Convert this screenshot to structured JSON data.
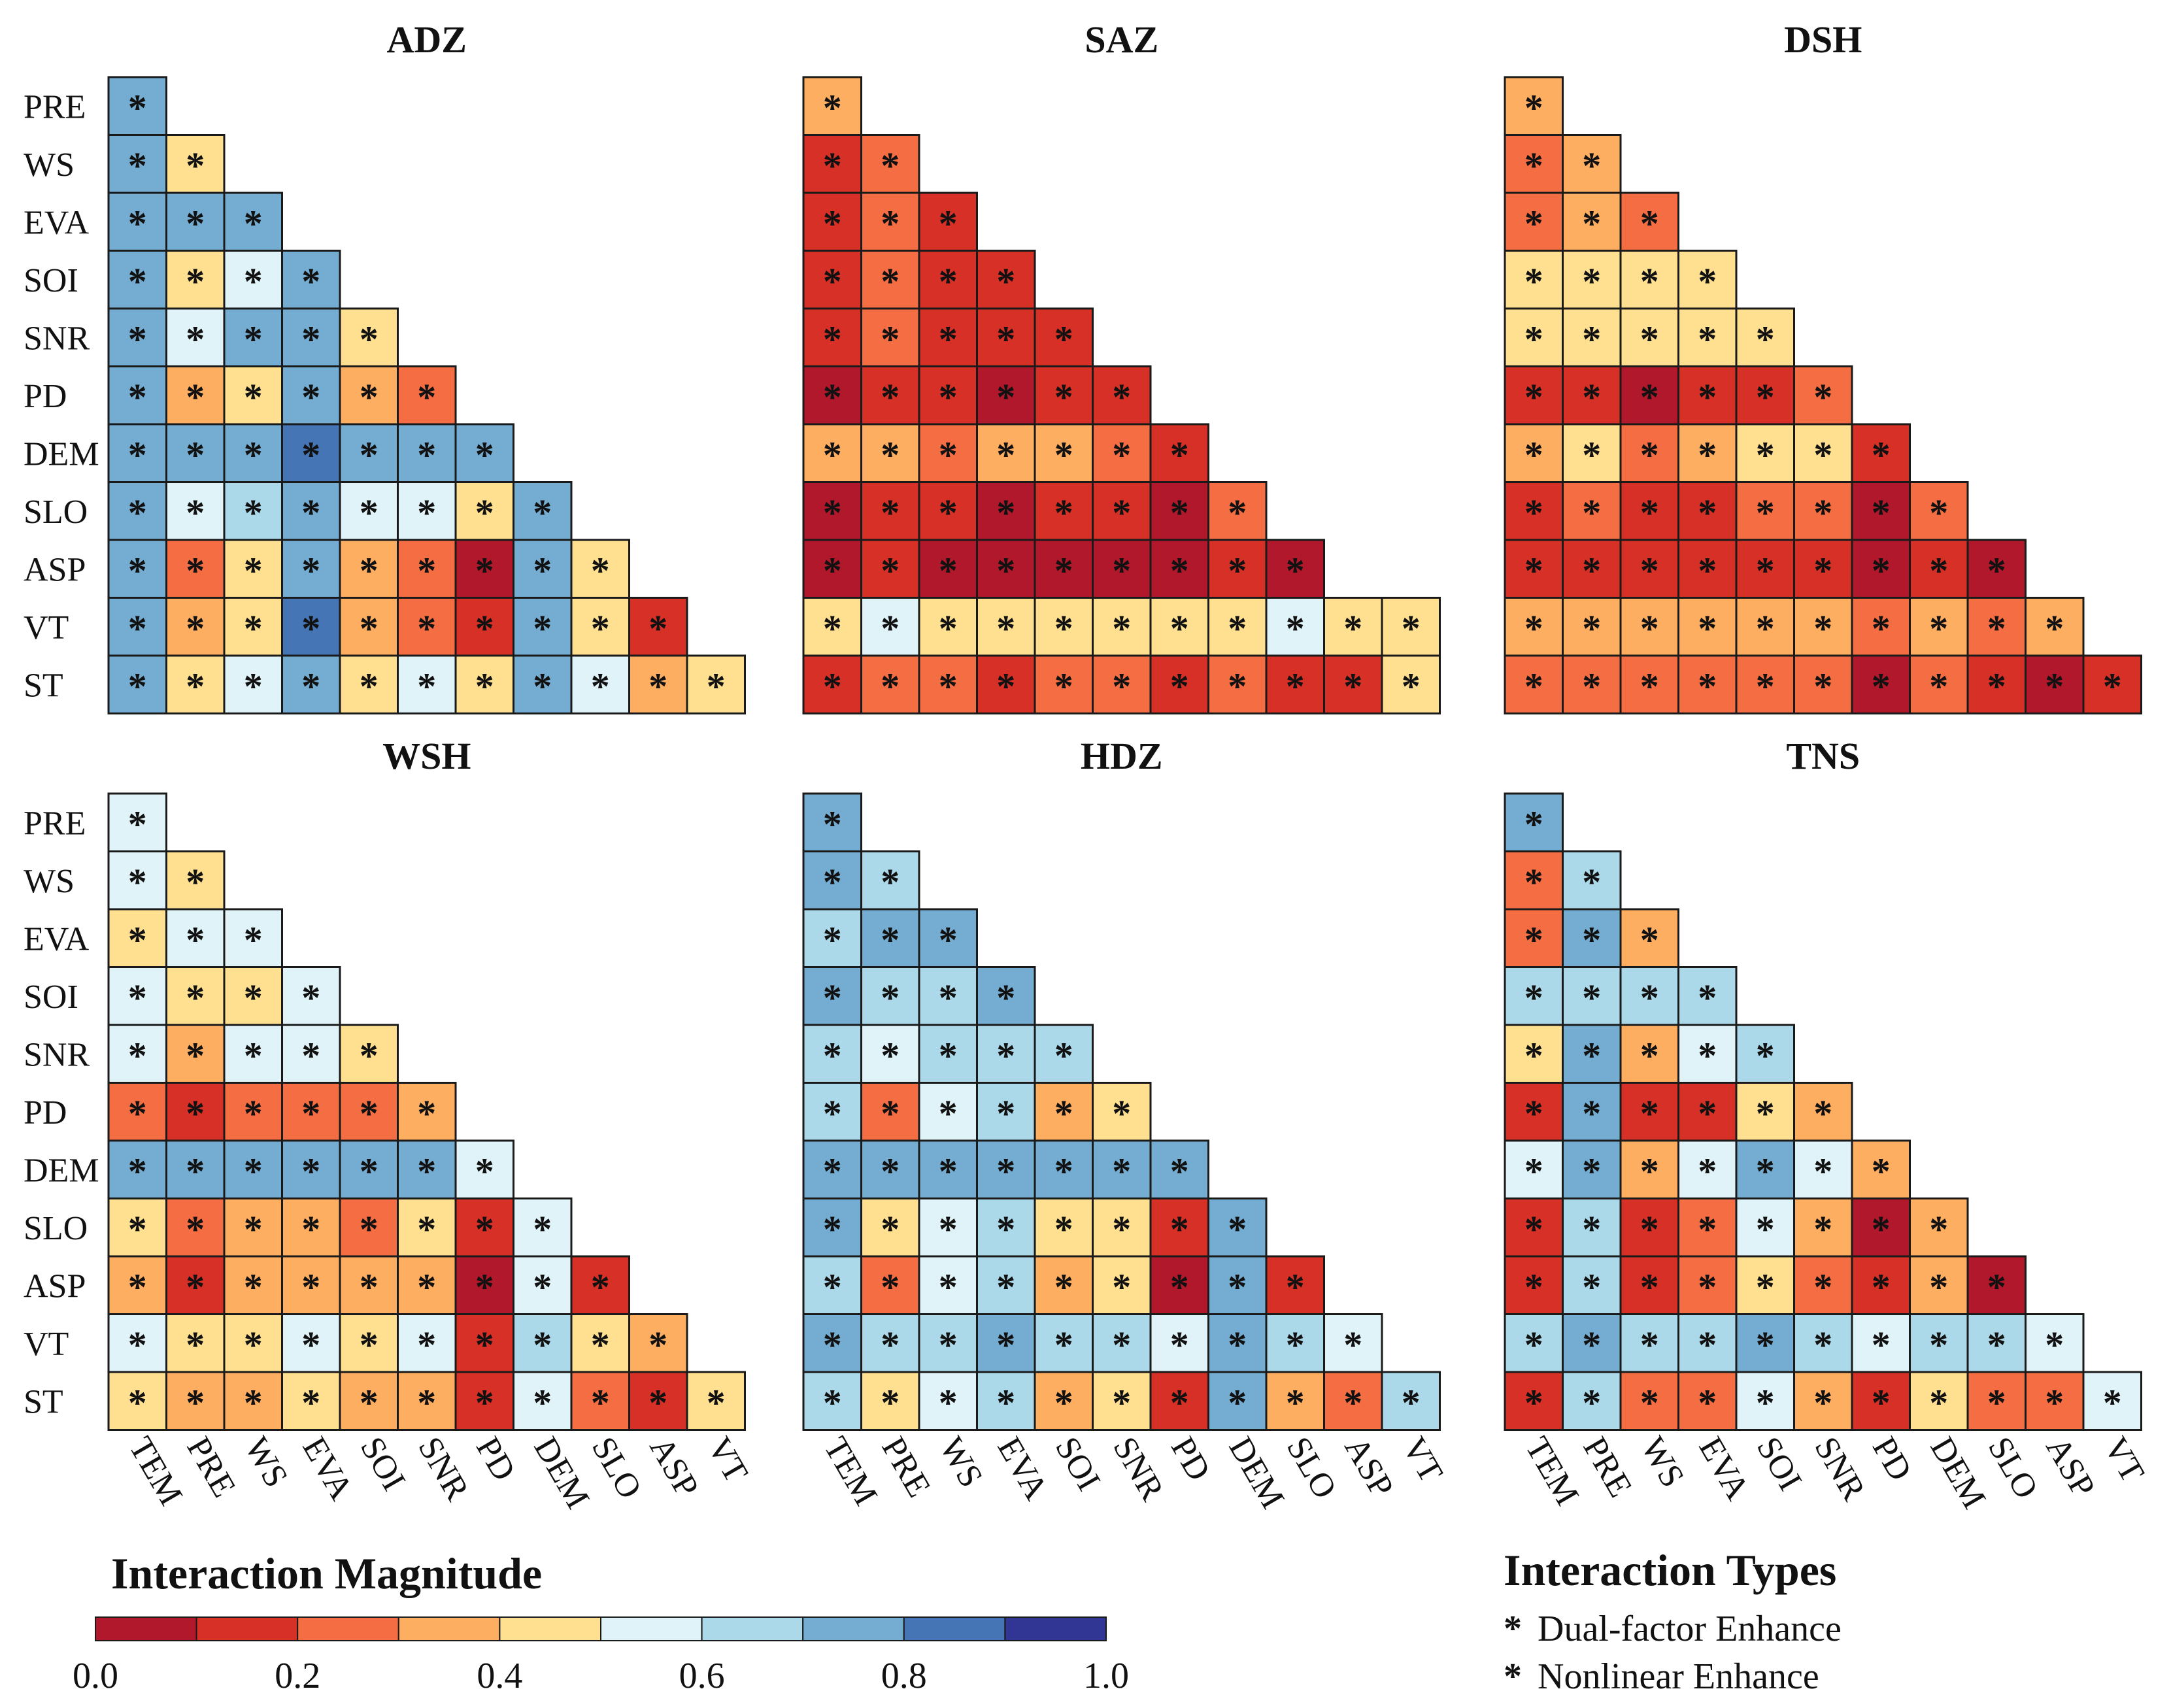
{
  "chart_data": {
    "type": "heatmap",
    "variables": [
      "TEM",
      "PRE",
      "WS",
      "EVA",
      "SOI",
      "SNR",
      "PD",
      "DEM",
      "SLO",
      "ASP",
      "VT",
      "ST"
    ],
    "row_labels": [
      "PRE",
      "WS",
      "EVA",
      "SOI",
      "SNR",
      "PD",
      "DEM",
      "SLO",
      "ASP",
      "VT",
      "ST"
    ],
    "col_labels": [
      "TEM",
      "PRE",
      "WS",
      "EVA",
      "SOI",
      "SNR",
      "PD",
      "DEM",
      "SLO",
      "ASP",
      "VT"
    ],
    "value_range": [
      0,
      1
    ],
    "marker_codes": {
      "D": "Dual-factor Enhance",
      "N": "Nonlinear Enhance"
    },
    "colorscale": {
      "title": "Interaction Magnitude",
      "colors": [
        "#b2182b",
        "#d73027",
        "#f46d43",
        "#fdae61",
        "#fee090",
        "#e0f3f8",
        "#abd9e9",
        "#74add1",
        "#4575b4",
        "#313695"
      ],
      "bins": [
        0.0,
        0.1,
        0.2,
        0.3,
        0.4,
        0.5,
        0.6,
        0.7,
        0.8,
        0.9,
        1.0
      ],
      "tick_labels": [
        "0.0",
        "0.2",
        "0.4",
        "0.6",
        "0.8",
        "1.0"
      ],
      "tick_values": [
        0.0,
        0.2,
        0.4,
        0.6,
        0.8,
        1.0
      ]
    },
    "legend": {
      "title": "Interaction Types",
      "items": [
        {
          "label": "Dual-factor Enhance",
          "color": "#111111"
        },
        {
          "label": "Nonlinear Enhance",
          "color": "#34d34a"
        }
      ]
    },
    "panels": [
      {
        "title": "ADZ",
        "values": [
          [
            0.75
          ],
          [
            0.75,
            0.45
          ],
          [
            0.75,
            0.75,
            0.75
          ],
          [
            0.75,
            0.45,
            0.55,
            0.75
          ],
          [
            0.75,
            0.55,
            0.75,
            0.75,
            0.45
          ],
          [
            0.75,
            0.35,
            0.45,
            0.75,
            0.35,
            0.25
          ],
          [
            0.75,
            0.75,
            0.75,
            0.85,
            0.75,
            0.75,
            0.75
          ],
          [
            0.75,
            0.55,
            0.65,
            0.75,
            0.55,
            0.55,
            0.45,
            0.75
          ],
          [
            0.75,
            0.25,
            0.45,
            0.75,
            0.35,
            0.25,
            0.05,
            0.75,
            0.45
          ],
          [
            0.75,
            0.35,
            0.45,
            0.85,
            0.35,
            0.25,
            0.15,
            0.75,
            0.45,
            0.15
          ],
          [
            0.75,
            0.45,
            0.55,
            0.75,
            0.45,
            0.55,
            0.45,
            0.75,
            0.55,
            0.35,
            0.45
          ]
        ],
        "markers": [
          [
            "D"
          ],
          [
            "D",
            "D"
          ],
          [
            "D",
            "D",
            "D"
          ],
          [
            "D",
            "D",
            "D",
            "D"
          ],
          [
            "D",
            "N",
            "N",
            "D",
            "D"
          ],
          [
            "D",
            "D",
            "D",
            "D",
            "D",
            "N"
          ],
          [
            "D",
            "D",
            "D",
            "D",
            "D",
            "D",
            "D"
          ],
          [
            "D",
            "D",
            "D",
            "D",
            "D",
            "D",
            "D",
            "D"
          ],
          [
            "D",
            "N",
            "N",
            "D",
            "D",
            "N",
            "N",
            "D",
            "N"
          ],
          [
            "D",
            "D",
            "D",
            "D",
            "D",
            "D",
            "D",
            "D",
            "D",
            "N"
          ],
          [
            "D",
            "D",
            "D",
            "D",
            "D",
            "D",
            "N",
            "D",
            "D",
            "N",
            "D"
          ]
        ]
      },
      {
        "title": "SAZ",
        "values": [
          [
            0.35
          ],
          [
            0.15,
            0.25
          ],
          [
            0.15,
            0.25,
            0.15
          ],
          [
            0.15,
            0.25,
            0.15,
            0.15
          ],
          [
            0.15,
            0.25,
            0.15,
            0.15,
            0.15
          ],
          [
            0.05,
            0.15,
            0.15,
            0.05,
            0.15,
            0.15
          ],
          [
            0.35,
            0.35,
            0.25,
            0.35,
            0.35,
            0.25,
            0.15
          ],
          [
            0.05,
            0.15,
            0.15,
            0.05,
            0.15,
            0.15,
            0.05,
            0.25
          ],
          [
            0.05,
            0.15,
            0.05,
            0.05,
            0.05,
            0.05,
            0.05,
            0.15,
            0.05
          ],
          [
            0.45,
            0.55,
            0.45,
            0.45,
            0.45,
            0.45,
            0.45,
            0.45,
            0.55,
            0.45,
            0.45
          ],
          [
            0.15,
            0.25,
            0.25,
            0.15,
            0.25,
            0.25,
            0.15,
            0.25,
            0.15,
            0.15,
            0.45
          ]
        ],
        "markers": [
          [
            "N"
          ],
          [
            "N",
            "N"
          ],
          [
            "N",
            "N",
            "N"
          ],
          [
            "N",
            "N",
            "N",
            "N"
          ],
          [
            "N",
            "N",
            "N",
            "N",
            "N"
          ],
          [
            "D",
            "N",
            "D",
            "D",
            "N",
            "D"
          ],
          [
            "N",
            "N",
            "N",
            "N",
            "N",
            "N",
            "D"
          ],
          [
            "N",
            "N",
            "N",
            "N",
            "N",
            "N",
            "D",
            "N"
          ],
          [
            "N",
            "N",
            "N",
            "N",
            "N",
            "N",
            "N",
            "N",
            "N"
          ],
          [
            "N",
            "D",
            "D",
            "N",
            "N",
            "N",
            "D",
            "D",
            "D",
            "N",
            "N"
          ],
          [
            "D",
            "N",
            "N",
            "N",
            "N",
            "D",
            "D",
            "N",
            "N",
            "N",
            "D"
          ]
        ]
      },
      {
        "title": "DSH",
        "values": [
          [
            0.35
          ],
          [
            0.25,
            0.35
          ],
          [
            0.25,
            0.35,
            0.25
          ],
          [
            0.45,
            0.45,
            0.45,
            0.45
          ],
          [
            0.45,
            0.45,
            0.45,
            0.45,
            0.45
          ],
          [
            0.15,
            0.15,
            0.05,
            0.15,
            0.15,
            0.25
          ],
          [
            0.35,
            0.45,
            0.25,
            0.35,
            0.45,
            0.45,
            0.15
          ],
          [
            0.15,
            0.25,
            0.15,
            0.15,
            0.25,
            0.25,
            0.05,
            0.25
          ],
          [
            0.15,
            0.15,
            0.15,
            0.15,
            0.15,
            0.15,
            0.05,
            0.15,
            0.05
          ],
          [
            0.35,
            0.35,
            0.35,
            0.35,
            0.35,
            0.35,
            0.25,
            0.35,
            0.25,
            0.35
          ],
          [
            0.25,
            0.25,
            0.25,
            0.25,
            0.25,
            0.25,
            0.05,
            0.25,
            0.15,
            0.05,
            0.15
          ]
        ],
        "markers": [
          [
            "N"
          ],
          [
            "N",
            "N"
          ],
          [
            "D",
            "N",
            "N"
          ],
          [
            "N",
            "D",
            "N",
            "N"
          ],
          [
            "N",
            "N",
            "N",
            "N",
            "N"
          ],
          [
            "N",
            "N",
            "N",
            "N",
            "D",
            "N"
          ],
          [
            "D",
            "N",
            "N",
            "N",
            "N",
            "N",
            "N"
          ],
          [
            "N",
            "N",
            "N",
            "N",
            "N",
            "N",
            "N",
            "N"
          ],
          [
            "N",
            "N",
            "N",
            "N",
            "N",
            "N",
            "N",
            "N",
            "N"
          ],
          [
            "D",
            "D",
            "N",
            "D",
            "D",
            "D",
            "N",
            "D",
            "N",
            "N"
          ],
          [
            "N",
            "N",
            "N",
            "D",
            "N",
            "N",
            "N",
            "N",
            "N",
            "N",
            "D"
          ]
        ]
      },
      {
        "title": "WSH",
        "values": [
          [
            0.55
          ],
          [
            0.55,
            0.45
          ],
          [
            0.45,
            0.55,
            0.55
          ],
          [
            0.55,
            0.45,
            0.45,
            0.55
          ],
          [
            0.55,
            0.35,
            0.55,
            0.55,
            0.45
          ],
          [
            0.25,
            0.15,
            0.25,
            0.25,
            0.25,
            0.35
          ],
          [
            0.75,
            0.75,
            0.75,
            0.75,
            0.75,
            0.75,
            0.55
          ],
          [
            0.45,
            0.25,
            0.35,
            0.35,
            0.25,
            0.45,
            0.15,
            0.55
          ],
          [
            0.35,
            0.15,
            0.35,
            0.35,
            0.35,
            0.35,
            0.05,
            0.55,
            0.15
          ],
          [
            0.55,
            0.45,
            0.45,
            0.55,
            0.45,
            0.55,
            0.15,
            0.65,
            0.45,
            0.35
          ],
          [
            0.45,
            0.35,
            0.35,
            0.45,
            0.35,
            0.35,
            0.15,
            0.55,
            0.25,
            0.15,
            0.45
          ]
        ],
        "markers": [
          [
            "N"
          ],
          [
            "D",
            "N"
          ],
          [
            "D",
            "N",
            "D"
          ],
          [
            "D",
            "N",
            "D",
            "D"
          ],
          [
            "D",
            "D",
            "N",
            "D",
            "D"
          ],
          [
            "N",
            "N",
            "N",
            "N",
            "N",
            "N"
          ],
          [
            "D",
            "D",
            "D",
            "D",
            "D",
            "D",
            "N"
          ],
          [
            "D",
            "N",
            "D",
            "D",
            "D",
            "N",
            "N",
            "D"
          ],
          [
            "N",
            "N",
            "N",
            "N",
            "N",
            "N",
            "N",
            "N",
            "N"
          ],
          [
            "D",
            "D",
            "D",
            "D",
            "D",
            "D",
            "N",
            "D",
            "D",
            "N"
          ],
          [
            "D",
            "N",
            "D",
            "D",
            "D",
            "D",
            "N",
            "D",
            "D",
            "N",
            "D"
          ]
        ]
      },
      {
        "title": "HDZ",
        "values": [
          [
            0.75
          ],
          [
            0.75,
            0.65
          ],
          [
            0.65,
            0.75,
            0.75
          ],
          [
            0.75,
            0.65,
            0.65,
            0.75
          ],
          [
            0.65,
            0.55,
            0.65,
            0.65,
            0.65
          ],
          [
            0.65,
            0.25,
            0.55,
            0.65,
            0.35,
            0.45
          ],
          [
            0.75,
            0.75,
            0.75,
            0.75,
            0.75,
            0.75,
            0.75
          ],
          [
            0.75,
            0.45,
            0.55,
            0.65,
            0.45,
            0.45,
            0.15,
            0.75
          ],
          [
            0.65,
            0.25,
            0.55,
            0.65,
            0.35,
            0.45,
            0.05,
            0.75,
            0.15
          ],
          [
            0.75,
            0.65,
            0.65,
            0.75,
            0.65,
            0.65,
            0.55,
            0.75,
            0.65,
            0.55
          ],
          [
            0.65,
            0.45,
            0.55,
            0.65,
            0.35,
            0.45,
            0.15,
            0.75,
            0.35,
            0.25,
            0.65
          ]
        ],
        "markers": [
          [
            "D"
          ],
          [
            "D",
            "D"
          ],
          [
            "D",
            "D",
            "D"
          ],
          [
            "D",
            "N",
            "D",
            "D"
          ],
          [
            "D",
            "D",
            "D",
            "D",
            "D"
          ],
          [
            "N",
            "N",
            "N",
            "N",
            "N",
            "N"
          ],
          [
            "D",
            "D",
            "D",
            "D",
            "D",
            "D",
            "N"
          ],
          [
            "D",
            "N",
            "D",
            "D",
            "D",
            "D",
            "N",
            "D"
          ],
          [
            "N",
            "N",
            "N",
            "N",
            "N",
            "N",
            "D",
            "D",
            "D"
          ],
          [
            "D",
            "D",
            "D",
            "D",
            "D",
            "D",
            "N",
            "D",
            "D",
            "N"
          ],
          [
            "D",
            "N",
            "D",
            "D",
            "D",
            "D",
            "N",
            "D",
            "D",
            "N",
            "D"
          ]
        ]
      },
      {
        "title": "TNS",
        "values": [
          [
            0.75
          ],
          [
            0.25,
            0.65
          ],
          [
            0.25,
            0.75,
            0.35
          ],
          [
            0.65,
            0.65,
            0.65,
            0.65
          ],
          [
            0.45,
            0.75,
            0.35,
            0.55,
            0.65
          ],
          [
            0.15,
            0.75,
            0.15,
            0.15,
            0.45,
            0.35
          ],
          [
            0.55,
            0.75,
            0.35,
            0.55,
            0.75,
            0.55,
            0.35
          ],
          [
            0.15,
            0.65,
            0.15,
            0.25,
            0.55,
            0.35,
            0.05,
            0.35
          ],
          [
            0.15,
            0.65,
            0.15,
            0.25,
            0.45,
            0.25,
            0.15,
            0.35,
            0.05
          ],
          [
            0.65,
            0.75,
            0.65,
            0.65,
            0.75,
            0.65,
            0.55,
            0.65,
            0.65,
            0.55
          ],
          [
            0.15,
            0.65,
            0.25,
            0.25,
            0.55,
            0.35,
            0.15,
            0.45,
            0.25,
            0.25,
            0.55
          ]
        ],
        "markers": [
          [
            "D"
          ],
          [
            "D",
            "D"
          ],
          [
            "D",
            "D",
            "N"
          ],
          [
            "N",
            "D",
            "N",
            "N"
          ],
          [
            "N",
            "D",
            "D",
            "D",
            "D"
          ],
          [
            "N",
            "D",
            "D",
            "D",
            "D",
            "D"
          ],
          [
            "N",
            "D",
            "D",
            "N",
            "D",
            "D",
            "D"
          ],
          [
            "N",
            "N",
            "N",
            "N",
            "N",
            "D",
            "D",
            "N"
          ],
          [
            "N",
            "D",
            "N",
            "N",
            "D",
            "D",
            "N",
            "N",
            "N"
          ],
          [
            "D",
            "D",
            "D",
            "D",
            "D",
            "D",
            "D",
            "D",
            "N",
            "D"
          ],
          [
            "D",
            "D",
            "D",
            "D",
            "D",
            "D",
            "D",
            "D",
            "N",
            "N",
            "D"
          ]
        ]
      }
    ]
  }
}
